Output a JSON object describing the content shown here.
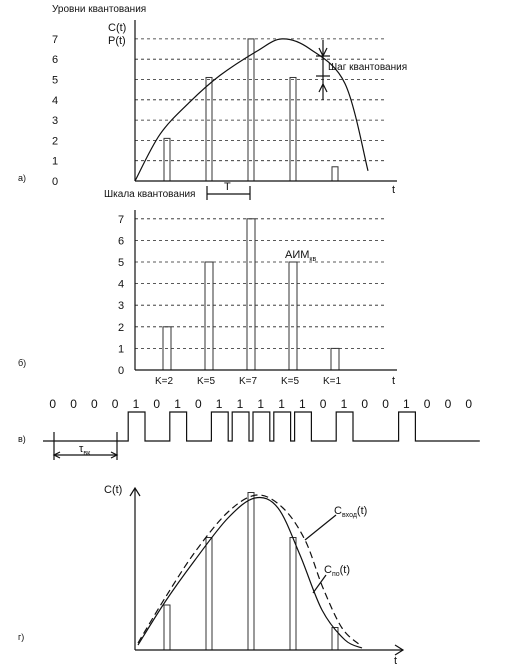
{
  "panel_a": {
    "levels_title": "Уровни квантования",
    "c_label": "C(t)",
    "p_label": "P(t)",
    "step_label": "Шаг квантования",
    "period_label": "T",
    "t_label": "t",
    "panel_tag": "а)"
  },
  "panel_b": {
    "scale_title": "Шкала квантования",
    "aim_main": "АИМ",
    "aim_sub": "кв",
    "t_label": "t",
    "panel_tag": "б)"
  },
  "panel_c": {
    "tau_main": "τ",
    "tau_sub": "вк",
    "panel_tag": "в)"
  },
  "panel_d": {
    "c_label": "C(t)",
    "curve1_main": "C",
    "curve1_sub": "вход",
    "curve1_tail": "(t)",
    "curve2_main": "C",
    "curve2_sub": "по",
    "curve2_tail": "(t)",
    "t_label": "t",
    "panel_tag": "г)"
  },
  "chart_data": [
    {
      "type": "line",
      "panel": "а",
      "ylim": [
        0,
        7
      ],
      "y_ticks": [
        "0",
        "1",
        "2",
        "3",
        "4",
        "5",
        "6",
        "7"
      ],
      "curve_x": [
        0,
        1,
        2,
        3,
        4,
        5,
        6,
        7,
        8
      ],
      "curve_y": [
        0,
        2.3,
        3.9,
        5.2,
        6.4,
        7.0,
        6.5,
        4.8,
        0.5
      ],
      "samples": [
        {
          "x": 1,
          "value": 2.1
        },
        {
          "x": 3,
          "value": 5.1
        },
        {
          "x": 5,
          "value": 7.0
        },
        {
          "x": 7,
          "value": 5.1
        },
        {
          "x": 9,
          "value": 0.7
        }
      ]
    },
    {
      "type": "bar",
      "panel": "б",
      "ylim": [
        0,
        7
      ],
      "y_ticks": [
        "0",
        "1",
        "2",
        "3",
        "4",
        "5",
        "6",
        "7"
      ],
      "categories": [
        "K=2",
        "K=5",
        "K=7",
        "K=5",
        "K=1"
      ],
      "values": [
        2,
        5,
        7,
        5,
        1
      ]
    },
    {
      "type": "table",
      "panel": "в",
      "bits": [
        "0",
        "0",
        "0",
        "0",
        "1",
        "0",
        "1",
        "0",
        "1",
        "1",
        "1",
        "1",
        "1",
        "0",
        "1",
        "0",
        "0",
        "1",
        "0",
        "0",
        "0"
      ]
    },
    {
      "type": "line",
      "panel": "г",
      "series": [
        {
          "name": "Cвход(t)",
          "style": "dashed"
        },
        {
          "name": "Cпо(t)",
          "style": "solid"
        }
      ],
      "bar_values": [
        2,
        5,
        7,
        5,
        1
      ]
    }
  ],
  "colors": {
    "ink": "#111111",
    "grid": "#222222",
    "paper": "#ffffff"
  }
}
